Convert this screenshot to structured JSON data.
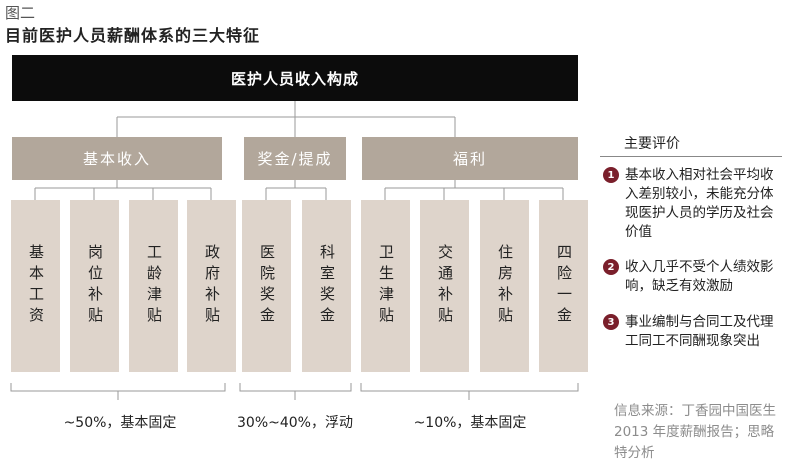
{
  "figure_label": "图二",
  "title": "目前医护人员薪酬体系的三大特征",
  "root": "医护人员收入构成",
  "categories": [
    "基本收入",
    "奖金/提成",
    "福利"
  ],
  "leaves": [
    "基本工资",
    "岗位补贴",
    "工龄津贴",
    "政府补贴",
    "医院奖金",
    "科室奖金",
    "卫生津贴",
    "交通补贴",
    "住房补贴",
    "四险一金"
  ],
  "percentages": [
    "~50%，基本固定",
    "30%~40%，浮动",
    "~10%，基本固定"
  ],
  "panel": {
    "title": "主要评价",
    "points": [
      {
        "num": "1",
        "text": "基本收入相对社会平均收入差别较小，未能充分体现医护人员的学历及社会价值"
      },
      {
        "num": "2",
        "text": "收入几乎不受个人绩效影响，缺乏有效激励"
      },
      {
        "num": "3",
        "text": "事业编制与合同工及代理工同工不同酬现象突出"
      }
    ]
  },
  "source": "信息来源：丁香园中国医生 2013 年度薪酬报告；思略特分析",
  "colors": {
    "root_bg": "#0c0c0c",
    "category_bg": "#b2a79b",
    "leaf_bg": "#ded4cb",
    "number_bg": "#7a1f2b"
  }
}
